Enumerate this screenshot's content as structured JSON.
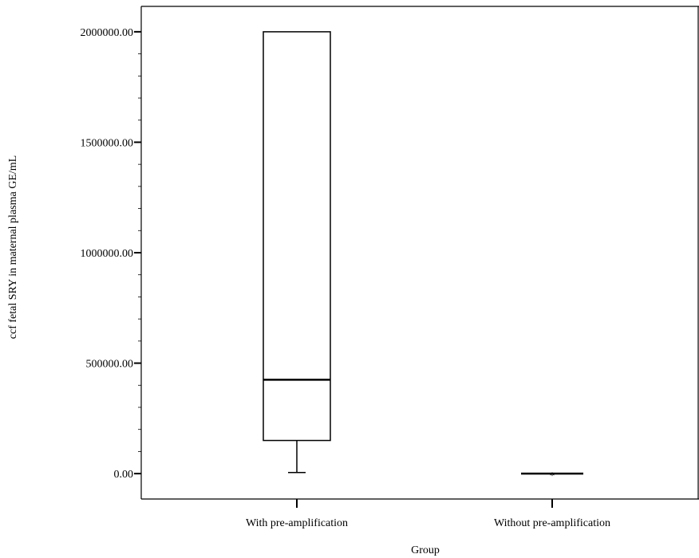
{
  "chart_data": {
    "type": "box",
    "xlabel": "Group",
    "ylabel": "ccf fetal SRY in maternal plasma GE/mL",
    "categories": [
      "With pre-amplification",
      "Without pre-amplification"
    ],
    "y_ticks": [
      "0.00",
      "500000.00",
      "1000000.00",
      "1500000.00",
      "2000000.00"
    ],
    "y_tick_values": [
      0,
      500000,
      1000000,
      1500000,
      2000000
    ],
    "ylim": [
      -115000,
      2115000
    ],
    "grid": false,
    "boxes": [
      {
        "category": "With pre-amplification",
        "whisker_low": 5000,
        "q1": 150000,
        "median": 425000,
        "q3": 2000000,
        "whisker_high": 2000000,
        "outliers": []
      },
      {
        "category": "Without pre-amplification",
        "whisker_low": 0,
        "q1": 0,
        "median": 0,
        "q3": 0,
        "whisker_high": 0,
        "outliers": [
          0
        ]
      }
    ],
    "outlier_marker": "*"
  }
}
